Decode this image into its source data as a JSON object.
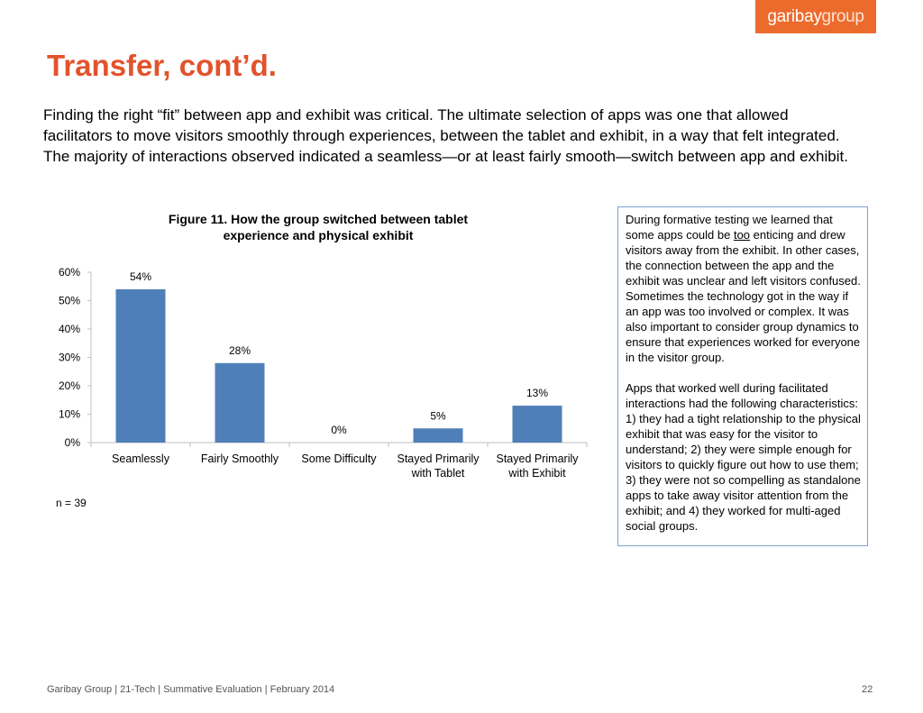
{
  "logo": {
    "text_main": "garibay",
    "text_accent": "group"
  },
  "slide": {
    "title": "Transfer, cont’d.",
    "intro": "Finding the right “fit” between app and exhibit was critical. The ultimate selection of apps was one that allowed facilitators to move visitors smoothly through experiences, between the tablet and exhibit, in a way that felt integrated. The majority of interactions observed indicated a seamless—or at least fairly smooth—switch between app and exhibit."
  },
  "chart_data": {
    "type": "bar",
    "title": "Figure 11. How the group switched between tablet experience and physical exhibit",
    "categories": [
      [
        "Seamlessly"
      ],
      [
        "Fairly Smoothly"
      ],
      [
        "Some Difficulty"
      ],
      [
        "Stayed Primarily",
        "with Tablet"
      ],
      [
        "Stayed Primarily",
        "with Exhibit"
      ]
    ],
    "values": [
      54,
      28,
      0,
      5,
      13
    ],
    "data_labels": [
      "54%",
      "28%",
      "0%",
      "5%",
      "13%"
    ],
    "yticks": [
      "0%",
      "10%",
      "20%",
      "30%",
      "40%",
      "50%",
      "60%"
    ],
    "ylim": [
      0,
      60
    ],
    "grid": false,
    "bar_color": "#4f7fb8",
    "note": "n = 39"
  },
  "sidebox": {
    "p1_before": "During formative testing we learned that some apps could be ",
    "p1_emph": "too",
    "p1_after": " enticing and drew visitors away from the exhibit. In other cases, the connection between the app and the exhibit was unclear and left visitors confused. Sometimes the technology got in the way if an app was too involved or complex. It was also important to consider group dynamics to ensure that experiences worked for everyone in the visitor group.",
    "p2": "Apps that worked well during facilitated interactions had the following characteristics: 1) they had a tight relationship to the physical exhibit that was easy for the visitor to understand; 2) they were simple enough for visitors to quickly figure out how to use them; 3) they were not so compelling as standalone apps to take away visitor attention from the exhibit; and 4) they worked for multi-aged social groups."
  },
  "footer": {
    "text": "Garibay Group | 21-Tech | Summative Evaluation | February 2014",
    "page": "22"
  }
}
